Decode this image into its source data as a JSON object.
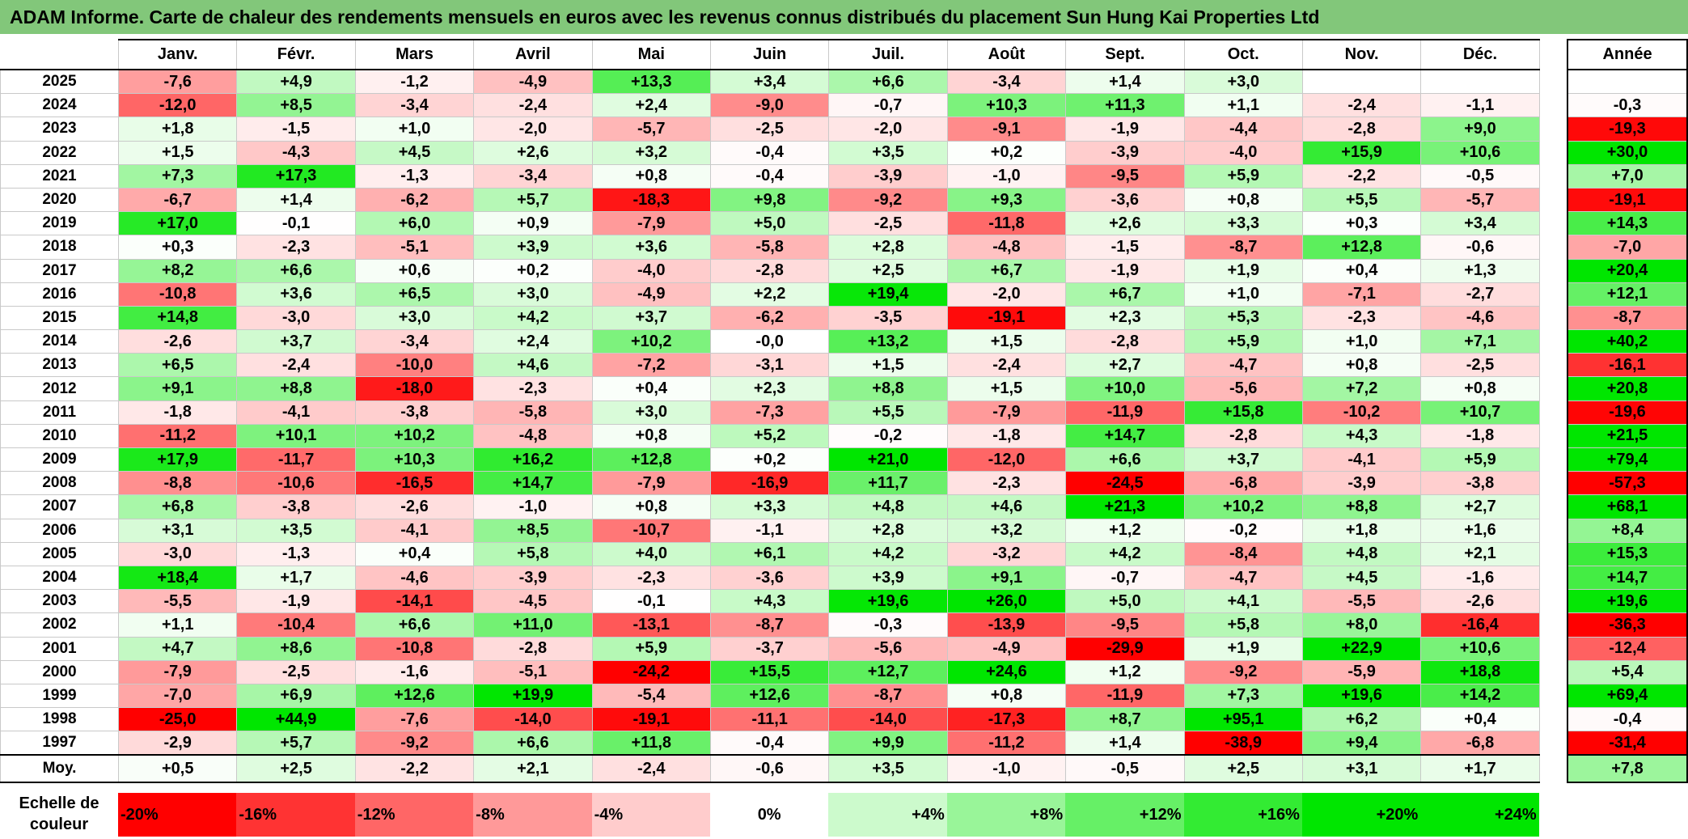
{
  "title": "ADAM Informe. Carte de chaleur des rendements mensuels en euros avec les revenus connus distribués du placement Sun Hung Kai Properties Ltd",
  "colors": {
    "neg_max": "#ff0000",
    "pos_max": "#00e600",
    "neutral": "#ffffff",
    "title_bg": "#82c77a"
  },
  "chart_data": {
    "type": "heatmap",
    "months": [
      "Janv.",
      "Févr.",
      "Mars",
      "Avril",
      "Mai",
      "Juin",
      "Juil.",
      "Août",
      "Sept.",
      "Oct.",
      "Nov.",
      "Déc."
    ],
    "annual_header": "Année",
    "rows": [
      {
        "year": "2025",
        "values": [
          "-7,6",
          "+4,9",
          "-1,2",
          "-4,9",
          "+13,3",
          "+3,4",
          "+6,6",
          "-3,4",
          "+1,4",
          "+3,0",
          "",
          ""
        ],
        "annual": ""
      },
      {
        "year": "2024",
        "values": [
          "-12,0",
          "+8,5",
          "-3,4",
          "-2,4",
          "+2,4",
          "-9,0",
          "-0,7",
          "+10,3",
          "+11,3",
          "+1,1",
          "-2,4",
          "-1,1"
        ],
        "annual": "-0,3"
      },
      {
        "year": "2023",
        "values": [
          "+1,8",
          "-1,5",
          "+1,0",
          "-2,0",
          "-5,7",
          "-2,5",
          "-2,0",
          "-9,1",
          "-1,9",
          "-4,4",
          "-2,8",
          "+9,0"
        ],
        "annual": "-19,3"
      },
      {
        "year": "2022",
        "values": [
          "+1,5",
          "-4,3",
          "+4,5",
          "+2,6",
          "+3,2",
          "-0,4",
          "+3,5",
          "+0,2",
          "-3,9",
          "-4,0",
          "+15,9",
          "+10,6"
        ],
        "annual": "+30,0"
      },
      {
        "year": "2021",
        "values": [
          "+7,3",
          "+17,3",
          "-1,3",
          "-3,4",
          "+0,8",
          "-0,4",
          "-3,9",
          "-1,0",
          "-9,5",
          "+5,9",
          "-2,2",
          "-0,5"
        ],
        "annual": "+7,0"
      },
      {
        "year": "2020",
        "values": [
          "-6,7",
          "+1,4",
          "-6,2",
          "+5,7",
          "-18,3",
          "+9,8",
          "-9,2",
          "+9,3",
          "-3,6",
          "+0,8",
          "+5,5",
          "-5,7"
        ],
        "annual": "-19,1"
      },
      {
        "year": "2019",
        "values": [
          "+17,0",
          "-0,1",
          "+6,0",
          "+0,9",
          "-7,9",
          "+5,0",
          "-2,5",
          "-11,8",
          "+2,6",
          "+3,3",
          "+0,3",
          "+3,4"
        ],
        "annual": "+14,3"
      },
      {
        "year": "2018",
        "values": [
          "+0,3",
          "-2,3",
          "-5,1",
          "+3,9",
          "+3,6",
          "-5,8",
          "+2,8",
          "-4,8",
          "-1,5",
          "-8,7",
          "+12,8",
          "-0,6"
        ],
        "annual": "-7,0"
      },
      {
        "year": "2017",
        "values": [
          "+8,2",
          "+6,6",
          "+0,6",
          "+0,2",
          "-4,0",
          "-2,8",
          "+2,5",
          "+6,7",
          "-1,9",
          "+1,9",
          "+0,4",
          "+1,3"
        ],
        "annual": "+20,4"
      },
      {
        "year": "2016",
        "values": [
          "-10,8",
          "+3,6",
          "+6,5",
          "+3,0",
          "-4,9",
          "+2,2",
          "+19,4",
          "-2,0",
          "+6,7",
          "+1,0",
          "-7,1",
          "-2,7"
        ],
        "annual": "+12,1"
      },
      {
        "year": "2015",
        "values": [
          "+14,8",
          "-3,0",
          "+3,0",
          "+4,2",
          "+3,7",
          "-6,2",
          "-3,5",
          "-19,1",
          "+2,3",
          "+5,3",
          "-2,3",
          "-4,6"
        ],
        "annual": "-8,7"
      },
      {
        "year": "2014",
        "values": [
          "-2,6",
          "+3,7",
          "-3,4",
          "+2,4",
          "+10,2",
          "-0,0",
          "+13,2",
          "+1,5",
          "-2,8",
          "+5,9",
          "+1,0",
          "+7,1"
        ],
        "annual": "+40,2"
      },
      {
        "year": "2013",
        "values": [
          "+6,5",
          "-2,4",
          "-10,0",
          "+4,6",
          "-7,2",
          "-3,1",
          "+1,5",
          "-2,4",
          "+2,7",
          "-4,7",
          "+0,8",
          "-2,5"
        ],
        "annual": "-16,1"
      },
      {
        "year": "2012",
        "values": [
          "+9,1",
          "+8,8",
          "-18,0",
          "-2,3",
          "+0,4",
          "+2,3",
          "+8,8",
          "+1,5",
          "+10,0",
          "-5,6",
          "+7,2",
          "+0,8"
        ],
        "annual": "+20,8"
      },
      {
        "year": "2011",
        "values": [
          "-1,8",
          "-4,1",
          "-3,8",
          "-5,8",
          "+3,0",
          "-7,3",
          "+5,5",
          "-7,9",
          "-11,9",
          "+15,8",
          "-10,2",
          "+10,7"
        ],
        "annual": "-19,6"
      },
      {
        "year": "2010",
        "values": [
          "-11,2",
          "+10,1",
          "+10,2",
          "-4,8",
          "+0,8",
          "+5,2",
          "-0,2",
          "-1,8",
          "+14,7",
          "-2,8",
          "+4,3",
          "-1,8"
        ],
        "annual": "+21,5"
      },
      {
        "year": "2009",
        "values": [
          "+17,9",
          "-11,7",
          "+10,3",
          "+16,2",
          "+12,8",
          "+0,2",
          "+21,0",
          "-12,0",
          "+6,6",
          "+3,7",
          "-4,1",
          "+5,9"
        ],
        "annual": "+79,4"
      },
      {
        "year": "2008",
        "values": [
          "-8,8",
          "-10,6",
          "-16,5",
          "+14,7",
          "-7,9",
          "-16,9",
          "+11,7",
          "-2,3",
          "-24,5",
          "-6,8",
          "-3,9",
          "-3,8"
        ],
        "annual": "-57,3"
      },
      {
        "year": "2007",
        "values": [
          "+6,8",
          "-3,8",
          "-2,6",
          "-1,0",
          "+0,8",
          "+3,3",
          "+4,8",
          "+4,6",
          "+21,3",
          "+10,2",
          "+8,8",
          "+2,7"
        ],
        "annual": "+68,1"
      },
      {
        "year": "2006",
        "values": [
          "+3,1",
          "+3,5",
          "-4,1",
          "+8,5",
          "-10,7",
          "-1,1",
          "+2,8",
          "+3,2",
          "+1,2",
          "-0,2",
          "+1,8",
          "+1,6"
        ],
        "annual": "+8,4"
      },
      {
        "year": "2005",
        "values": [
          "-3,0",
          "-1,3",
          "+0,4",
          "+5,8",
          "+4,0",
          "+6,1",
          "+4,2",
          "-3,2",
          "+4,2",
          "-8,4",
          "+4,8",
          "+2,1"
        ],
        "annual": "+15,3"
      },
      {
        "year": "2004",
        "values": [
          "+18,4",
          "+1,7",
          "-4,6",
          "-3,9",
          "-2,3",
          "-3,6",
          "+3,9",
          "+9,1",
          "-0,7",
          "-4,7",
          "+4,5",
          "-1,6"
        ],
        "annual": "+14,7"
      },
      {
        "year": "2003",
        "values": [
          "-5,5",
          "-1,9",
          "-14,1",
          "-4,5",
          "-0,1",
          "+4,3",
          "+19,6",
          "+26,0",
          "+5,0",
          "+4,1",
          "-5,5",
          "-2,6"
        ],
        "annual": "+19,6"
      },
      {
        "year": "2002",
        "values": [
          "+1,1",
          "-10,4",
          "+6,6",
          "+11,0",
          "-13,1",
          "-8,7",
          "-0,3",
          "-13,9",
          "-9,5",
          "+5,8",
          "+8,0",
          "-16,4"
        ],
        "annual": "-36,3"
      },
      {
        "year": "2001",
        "values": [
          "+4,7",
          "+8,6",
          "-10,8",
          "-2,8",
          "+5,9",
          "-3,7",
          "-5,6",
          "-4,9",
          "-29,9",
          "+1,9",
          "+22,9",
          "+10,6"
        ],
        "annual": "-12,4"
      },
      {
        "year": "2000",
        "values": [
          "-7,9",
          "-2,5",
          "-1,6",
          "-5,1",
          "-24,2",
          "+15,5",
          "+12,7",
          "+24,6",
          "+1,2",
          "-9,2",
          "-5,9",
          "+18,8"
        ],
        "annual": "+5,4"
      },
      {
        "year": "1999",
        "values": [
          "-7,0",
          "+6,9",
          "+12,6",
          "+19,9",
          "-5,4",
          "+12,6",
          "-8,7",
          "+0,8",
          "-11,9",
          "+7,3",
          "+19,6",
          "+14,2"
        ],
        "annual": "+69,4"
      },
      {
        "year": "1998",
        "values": [
          "-25,0",
          "+44,9",
          "-7,6",
          "-14,0",
          "-19,1",
          "-11,1",
          "-14,0",
          "-17,3",
          "+8,7",
          "+95,1",
          "+6,2",
          "+0,4"
        ],
        "annual": "-0,4"
      },
      {
        "year": "1997",
        "values": [
          "-2,9",
          "+5,7",
          "-9,2",
          "+6,6",
          "+11,8",
          "-0,4",
          "+9,9",
          "-11,2",
          "+1,4",
          "-38,9",
          "+9,4",
          "-6,8"
        ],
        "annual": "-31,4"
      }
    ],
    "average": {
      "label": "Moy.",
      "values": [
        "+0,5",
        "+2,5",
        "-2,2",
        "+2,1",
        "-2,4",
        "-0,6",
        "+3,5",
        "-1,0",
        "-0,5",
        "+2,5",
        "+3,1",
        "+1,7"
      ],
      "annual": "+7,8"
    },
    "scale": {
      "label_line1": "Echelle de",
      "label_line2": "couleur",
      "items": [
        {
          "label": "-20%",
          "value": -20
        },
        {
          "label": "-16%",
          "value": -16
        },
        {
          "label": "-12%",
          "value": -12
        },
        {
          "label": "-8%",
          "value": -8
        },
        {
          "label": "-4%",
          "value": -4
        },
        {
          "label": "0%",
          "value": 0
        },
        {
          "label": "+4%",
          "value": 4
        },
        {
          "label": "+8%",
          "value": 8
        },
        {
          "label": "+12%",
          "value": 12
        },
        {
          "label": "+16%",
          "value": 16
        },
        {
          "label": "+20%",
          "value": 20
        },
        {
          "label": "+24%",
          "value": 24
        }
      ]
    }
  }
}
